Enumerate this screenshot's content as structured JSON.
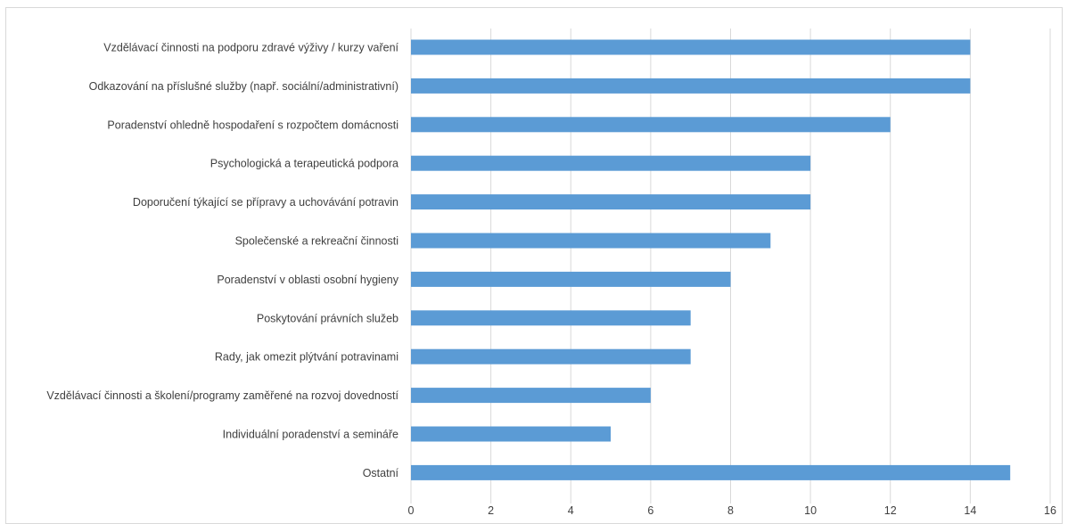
{
  "chart_data": {
    "type": "bar",
    "orientation": "horizontal",
    "categories": [
      "Vzdělávací činnosti na podporu zdravé výživy / kurzy vaření",
      "Odkazování na příslušné služby (např. sociální/administrativní)",
      "Poradenství ohledně hospodaření s rozpočtem domácnosti",
      "Psychologická a terapeutická podpora",
      "Doporučení týkající se přípravy a uchovávání potravin",
      "Společenské a rekreační činnosti",
      "Poradenství v oblasti osobní hygieny",
      "Poskytování právních služeb",
      "Rady, jak omezit plýtvání potravinami",
      "Vzdělávací činnosti a školení/programy zaměřené na rozvoj dovedností",
      "Individuální poradenství a semináře",
      "Ostatní"
    ],
    "values": [
      14,
      14,
      12,
      10,
      10,
      9,
      8,
      7,
      7,
      6,
      5,
      15
    ],
    "xlim": [
      0,
      16
    ],
    "xticks": [
      "0",
      "2",
      "4",
      "6",
      "8",
      "10",
      "12",
      "14",
      "16"
    ],
    "title": "",
    "xlabel": "",
    "ylabel": "",
    "grid": "vertical",
    "legend": "none",
    "colors": {
      "bar": "#5b9bd5",
      "grid": "#d9d9d9",
      "text": "#404040",
      "frame": "#d9d9d9"
    }
  }
}
